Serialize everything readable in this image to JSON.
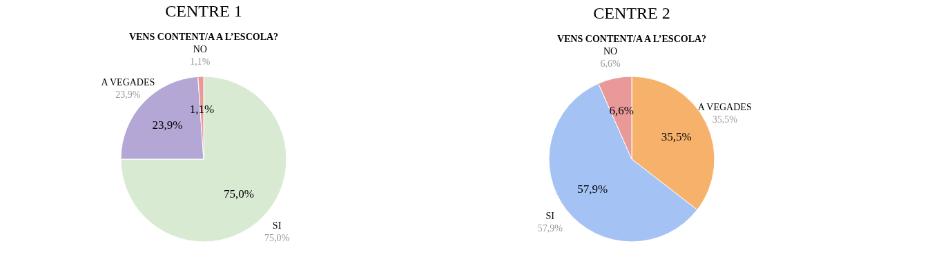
{
  "chart_data": [
    {
      "type": "pie",
      "title": "CENTRE 1",
      "subtitle": "VENS CONTENT/A A L’ESCOLA?",
      "categories": [
        "SI",
        "A VEGADES",
        "NO"
      ],
      "values": [
        75.0,
        23.9,
        1.1
      ],
      "colors": [
        "#d9ead3",
        "#b4a7d6",
        "#ea9999"
      ],
      "value_labels": [
        "75,0%",
        "23,9%",
        "1,1%"
      ],
      "legend": false
    },
    {
      "type": "pie",
      "title": "CENTRE 2",
      "subtitle": "VENS CONTENT/A A L’ESCOLA?",
      "categories": [
        "A VEGADES",
        "SI",
        "NO"
      ],
      "values": [
        35.5,
        57.9,
        6.6
      ],
      "colors": [
        "#f6b26b",
        "#a4c2f4",
        "#ea9999"
      ],
      "value_labels": [
        "35,5%",
        "57,9%",
        "6,6%"
      ],
      "legend": false
    }
  ]
}
